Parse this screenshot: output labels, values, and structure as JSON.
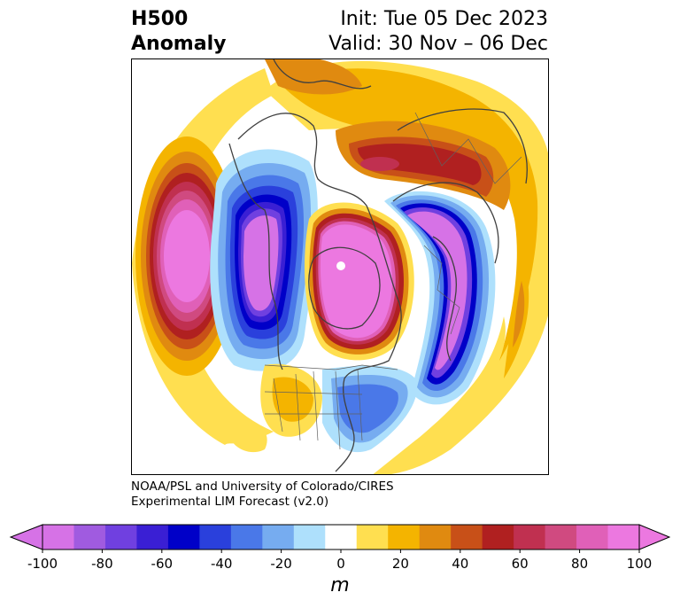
{
  "title": {
    "left_line1": "H500",
    "left_line2": "Anomaly",
    "right_line1": "Init: Tue 05 Dec 2023",
    "right_line2": "Valid: 30 Nov – 06 Dec"
  },
  "credit": {
    "line1": "NOAA/PSL and University of Colorado/CIRES",
    "line2": "Experimental LIM Forecast (v2.0)"
  },
  "colorbar": {
    "units": "m",
    "ticks": [
      "-100",
      "-80",
      "-60",
      "-40",
      "-20",
      "0",
      "20",
      "40",
      "60",
      "80",
      "100"
    ],
    "levels": [
      -100,
      -90,
      -80,
      -70,
      -60,
      -50,
      -40,
      -30,
      -20,
      -10,
      10,
      20,
      30,
      40,
      50,
      60,
      70,
      80,
      90,
      100
    ],
    "colors": [
      "#d672e6",
      "#a05be0",
      "#7040e0",
      "#3a1fd4",
      "#0000c8",
      "#2a40dc",
      "#4a78e8",
      "#76acf0",
      "#aee0fc",
      "#ffffff",
      "#ffdf50",
      "#f4b400",
      "#e08a10",
      "#c85018",
      "#b02020",
      "#c03050",
      "#d04a80",
      "#e060b8",
      "#ec78e0"
    ],
    "extend_low_color": "#d672e6",
    "extend_high_color": "#ec78e0"
  },
  "map": {
    "projection": "north polar stereographic",
    "field": "500 hPa geopotential height anomaly",
    "features": [
      {
        "name": "north-pacific-ridge",
        "sign": "positive",
        "peak": 100
      },
      {
        "name": "western-canada-trough",
        "sign": "negative",
        "peak": -100
      },
      {
        "name": "arctic-ridge",
        "sign": "positive",
        "peak": 100
      },
      {
        "name": "europe-trough",
        "sign": "negative",
        "peak": -100
      },
      {
        "name": "siberia-ridge",
        "sign": "positive",
        "peak": 70
      },
      {
        "name": "eastern-us-trough",
        "sign": "negative",
        "peak": -40
      },
      {
        "name": "southwest-us-ridge",
        "sign": "positive",
        "peak": 40
      }
    ]
  }
}
